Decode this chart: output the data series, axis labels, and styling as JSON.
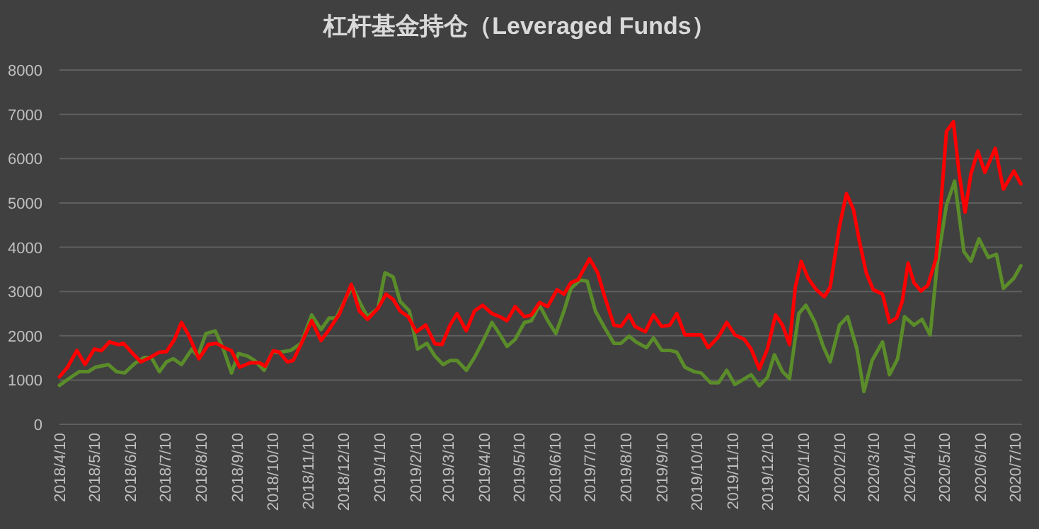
{
  "chart_data": {
    "type": "line",
    "title": "杠杆基金持仓（Leveraged Funds）",
    "grid": "y",
    "marker": "none",
    "line_style": "solid",
    "xlim": [
      "2018-04-10",
      "2020-07-16"
    ],
    "xticks": [
      {
        "value": "2018-04-10",
        "label": "2018/4/10"
      },
      {
        "value": "2018-05-10",
        "label": "2018/5/10"
      },
      {
        "value": "2018-06-10",
        "label": "2018/6/10"
      },
      {
        "value": "2018-07-10",
        "label": "2018/7/10"
      },
      {
        "value": "2018-08-10",
        "label": "2018/8/10"
      },
      {
        "value": "2018-09-10",
        "label": "2018/9/10"
      },
      {
        "value": "2018-10-10",
        "label": "2018/10/10"
      },
      {
        "value": "2018-11-10",
        "label": "2018/11/10"
      },
      {
        "value": "2018-12-10",
        "label": "2018/12/10"
      },
      {
        "value": "2019-01-10",
        "label": "2019/1/10"
      },
      {
        "value": "2019-02-10",
        "label": "2019/2/10"
      },
      {
        "value": "2019-03-10",
        "label": "2019/3/10"
      },
      {
        "value": "2019-04-10",
        "label": "2019/4/10"
      },
      {
        "value": "2019-05-10",
        "label": "2019/5/10"
      },
      {
        "value": "2019-06-10",
        "label": "2019/6/10"
      },
      {
        "value": "2019-07-10",
        "label": "2019/7/10"
      },
      {
        "value": "2019-08-10",
        "label": "2019/8/10"
      },
      {
        "value": "2019-09-10",
        "label": "2019/9/10"
      },
      {
        "value": "2019-10-10",
        "label": "2019/10/10"
      },
      {
        "value": "2019-11-10",
        "label": "2019/11/10"
      },
      {
        "value": "2019-12-10",
        "label": "2019/12/10"
      },
      {
        "value": "2020-01-10",
        "label": "2020/1/10"
      },
      {
        "value": "2020-02-10",
        "label": "2020/2/10"
      },
      {
        "value": "2020-03-10",
        "label": "2020/3/10"
      },
      {
        "value": "2020-04-10",
        "label": "2020/4/10"
      },
      {
        "value": "2020-05-10",
        "label": "2020/5/10"
      },
      {
        "value": "2020-06-10",
        "label": "2020/6/10"
      },
      {
        "value": "2020-07-10",
        "label": "2020/7/10"
      }
    ],
    "ylim": [
      0,
      8000
    ],
    "yticks": [
      0,
      1000,
      2000,
      3000,
      4000,
      5000,
      6000,
      7000,
      8000
    ],
    "series": [
      {
        "color": "#5b8c2a",
        "x": [
          "2018-04-10",
          "2018-04-18",
          "2018-04-27",
          "2018-05-05",
          "2018-05-11",
          "2018-05-22",
          "2018-05-29",
          "2018-06-05",
          "2018-06-14",
          "2018-06-22",
          "2018-06-28",
          "2018-07-05",
          "2018-07-11",
          "2018-07-17",
          "2018-07-24",
          "2018-08-02",
          "2018-08-07",
          "2018-08-14",
          "2018-08-22",
          "2018-08-29",
          "2018-09-05",
          "2018-09-11",
          "2018-09-19",
          "2018-09-25",
          "2018-10-03",
          "2018-10-10",
          "2018-10-17",
          "2018-10-26",
          "2018-11-04",
          "2018-11-13",
          "2018-11-21",
          "2018-11-28",
          "2018-12-04",
          "2018-12-13",
          "2018-12-18",
          "2018-12-25",
          "2018-12-31",
          "2019-01-09",
          "2019-01-15",
          "2019-01-22",
          "2019-01-28",
          "2019-02-05",
          "2019-02-12",
          "2019-02-20",
          "2019-02-27",
          "2019-03-06",
          "2019-03-12",
          "2019-03-18",
          "2019-03-26",
          "2019-04-02",
          "2019-04-09",
          "2019-04-17",
          "2019-04-24",
          "2019-04-30",
          "2019-05-07",
          "2019-05-15",
          "2019-05-21",
          "2019-05-28",
          "2019-06-04",
          "2019-06-11",
          "2019-06-18",
          "2019-06-24",
          "2019-07-02",
          "2019-07-08",
          "2019-07-15",
          "2019-07-23",
          "2019-07-31",
          "2019-08-06",
          "2019-08-13",
          "2019-08-19",
          "2019-08-28",
          "2019-09-03",
          "2019-09-10",
          "2019-09-17",
          "2019-09-23",
          "2019-09-30",
          "2019-10-08",
          "2019-10-14",
          "2019-10-22",
          "2019-10-29",
          "2019-11-05",
          "2019-11-12",
          "2019-11-26",
          "2019-12-03",
          "2019-12-10",
          "2019-12-16",
          "2019-12-23",
          "2019-12-29",
          "2020-01-06",
          "2020-01-12",
          "2020-01-20",
          "2020-01-27",
          "2020-02-02",
          "2020-02-10",
          "2020-02-17",
          "2020-02-25",
          "2020-03-02",
          "2020-03-09",
          "2020-03-18",
          "2020-03-24",
          "2020-03-31",
          "2020-04-06",
          "2020-04-14",
          "2020-04-21",
          "2020-04-28",
          "2020-05-04",
          "2020-05-12",
          "2020-05-19",
          "2020-05-27",
          "2020-06-02",
          "2020-06-09",
          "2020-06-17",
          "2020-06-24",
          "2020-06-30",
          "2020-07-09",
          "2020-07-15"
        ],
        "values": [
          880,
          1030,
          1190,
          1190,
          1290,
          1350,
          1190,
          1160,
          1380,
          1510,
          1510,
          1190,
          1410,
          1480,
          1350,
          1700,
          1540,
          2050,
          2110,
          1700,
          1160,
          1600,
          1540,
          1440,
          1220,
          1630,
          1630,
          1670,
          1830,
          2470,
          2140,
          2400,
          2400,
          2880,
          3100,
          2720,
          2430,
          2620,
          3420,
          3330,
          2780,
          2560,
          1700,
          1830,
          1540,
          1350,
          1440,
          1440,
          1220,
          1510,
          1860,
          2300,
          2020,
          1760,
          1920,
          2300,
          2340,
          2690,
          2340,
          2050,
          2560,
          3070,
          3260,
          3230,
          2560,
          2180,
          1830,
          1830,
          1990,
          1860,
          1730,
          1950,
          1670,
          1670,
          1630,
          1290,
          1190,
          1160,
          940,
          940,
          1220,
          900,
          1120,
          870,
          1060,
          1570,
          1190,
          1030,
          2500,
          2690,
          2300,
          1760,
          1410,
          2240,
          2430,
          1700,
          740,
          1440,
          1860,
          1120,
          1480,
          2430,
          2240,
          2370,
          2020,
          3610,
          4950,
          5490,
          3900,
          3680,
          4190,
          3770,
          3840,
          3070,
          3300,
          3580
        ]
      },
      {
        "color": "#ff0000",
        "x": [
          "2018-04-10",
          "2018-04-17",
          "2018-04-25",
          "2018-05-02",
          "2018-05-10",
          "2018-05-16",
          "2018-05-23",
          "2018-05-31",
          "2018-06-04",
          "2018-06-12",
          "2018-06-19",
          "2018-06-27",
          "2018-07-05",
          "2018-07-11",
          "2018-07-18",
          "2018-07-24",
          "2018-07-30",
          "2018-08-08",
          "2018-08-16",
          "2018-08-23",
          "2018-08-30",
          "2018-09-05",
          "2018-09-12",
          "2018-09-21",
          "2018-09-29",
          "2018-10-04",
          "2018-10-11",
          "2018-10-16",
          "2018-10-23",
          "2018-10-28",
          "2018-11-04",
          "2018-11-13",
          "2018-11-21",
          "2018-11-28",
          "2018-12-07",
          "2018-12-17",
          "2018-12-24",
          "2018-12-31",
          "2019-01-09",
          "2019-01-16",
          "2019-01-22",
          "2019-01-28",
          "2019-02-04",
          "2019-02-11",
          "2019-02-19",
          "2019-02-27",
          "2019-03-05",
          "2019-03-12",
          "2019-03-18",
          "2019-03-26",
          "2019-04-02",
          "2019-04-09",
          "2019-04-17",
          "2019-04-24",
          "2019-04-30",
          "2019-05-07",
          "2019-05-15",
          "2019-05-21",
          "2019-05-28",
          "2019-06-04",
          "2019-06-12",
          "2019-06-18",
          "2019-06-24",
          "2019-06-30",
          "2019-07-10",
          "2019-07-17",
          "2019-07-23",
          "2019-07-31",
          "2019-08-06",
          "2019-08-13",
          "2019-08-18",
          "2019-08-27",
          "2019-09-03",
          "2019-09-10",
          "2019-09-17",
          "2019-09-23",
          "2019-09-30",
          "2019-10-07",
          "2019-10-14",
          "2019-10-20",
          "2019-10-29",
          "2019-11-05",
          "2019-11-12",
          "2019-11-20",
          "2019-11-26",
          "2019-12-03",
          "2019-12-10",
          "2019-12-17",
          "2019-12-23",
          "2019-12-29",
          "2020-01-03",
          "2020-01-08",
          "2020-01-14",
          "2020-01-21",
          "2020-01-28",
          "2020-02-02",
          "2020-02-10",
          "2020-02-16",
          "2020-02-22",
          "2020-02-27",
          "2020-03-04",
          "2020-03-10",
          "2020-03-18",
          "2020-03-24",
          "2020-03-30",
          "2020-04-04",
          "2020-04-09",
          "2020-04-14",
          "2020-04-20",
          "2020-04-26",
          "2020-05-03",
          "2020-05-07",
          "2020-05-12",
          "2020-05-18",
          "2020-05-23",
          "2020-05-28",
          "2020-06-02",
          "2020-06-08",
          "2020-06-14",
          "2020-06-23",
          "2020-06-30",
          "2020-07-09",
          "2020-07-15"
        ],
        "values": [
          1070,
          1290,
          1670,
          1350,
          1700,
          1660,
          1860,
          1800,
          1830,
          1600,
          1410,
          1510,
          1630,
          1640,
          1920,
          2300,
          2020,
          1480,
          1800,
          1830,
          1730,
          1660,
          1290,
          1390,
          1390,
          1310,
          1660,
          1630,
          1410,
          1440,
          1820,
          2340,
          1890,
          2140,
          2500,
          3160,
          2560,
          2370,
          2620,
          2940,
          2820,
          2560,
          2430,
          2090,
          2240,
          1820,
          1800,
          2240,
          2500,
          2110,
          2560,
          2690,
          2500,
          2430,
          2340,
          2660,
          2430,
          2470,
          2750,
          2660,
          3040,
          2940,
          3200,
          3260,
          3740,
          3420,
          2880,
          2240,
          2210,
          2470,
          2210,
          2090,
          2470,
          2210,
          2240,
          2500,
          2020,
          2020,
          2020,
          1730,
          1980,
          2300,
          2020,
          1920,
          1700,
          1250,
          1700,
          2470,
          2240,
          1800,
          3100,
          3680,
          3300,
          3040,
          2880,
          3100,
          4470,
          5210,
          4850,
          4150,
          3420,
          3040,
          2940,
          2300,
          2400,
          2780,
          3640,
          3200,
          3010,
          3140,
          3740,
          4890,
          6610,
          6830,
          5650,
          4790,
          5650,
          6170,
          5690,
          6230,
          5310,
          5720,
          5430
        ]
      }
    ]
  }
}
